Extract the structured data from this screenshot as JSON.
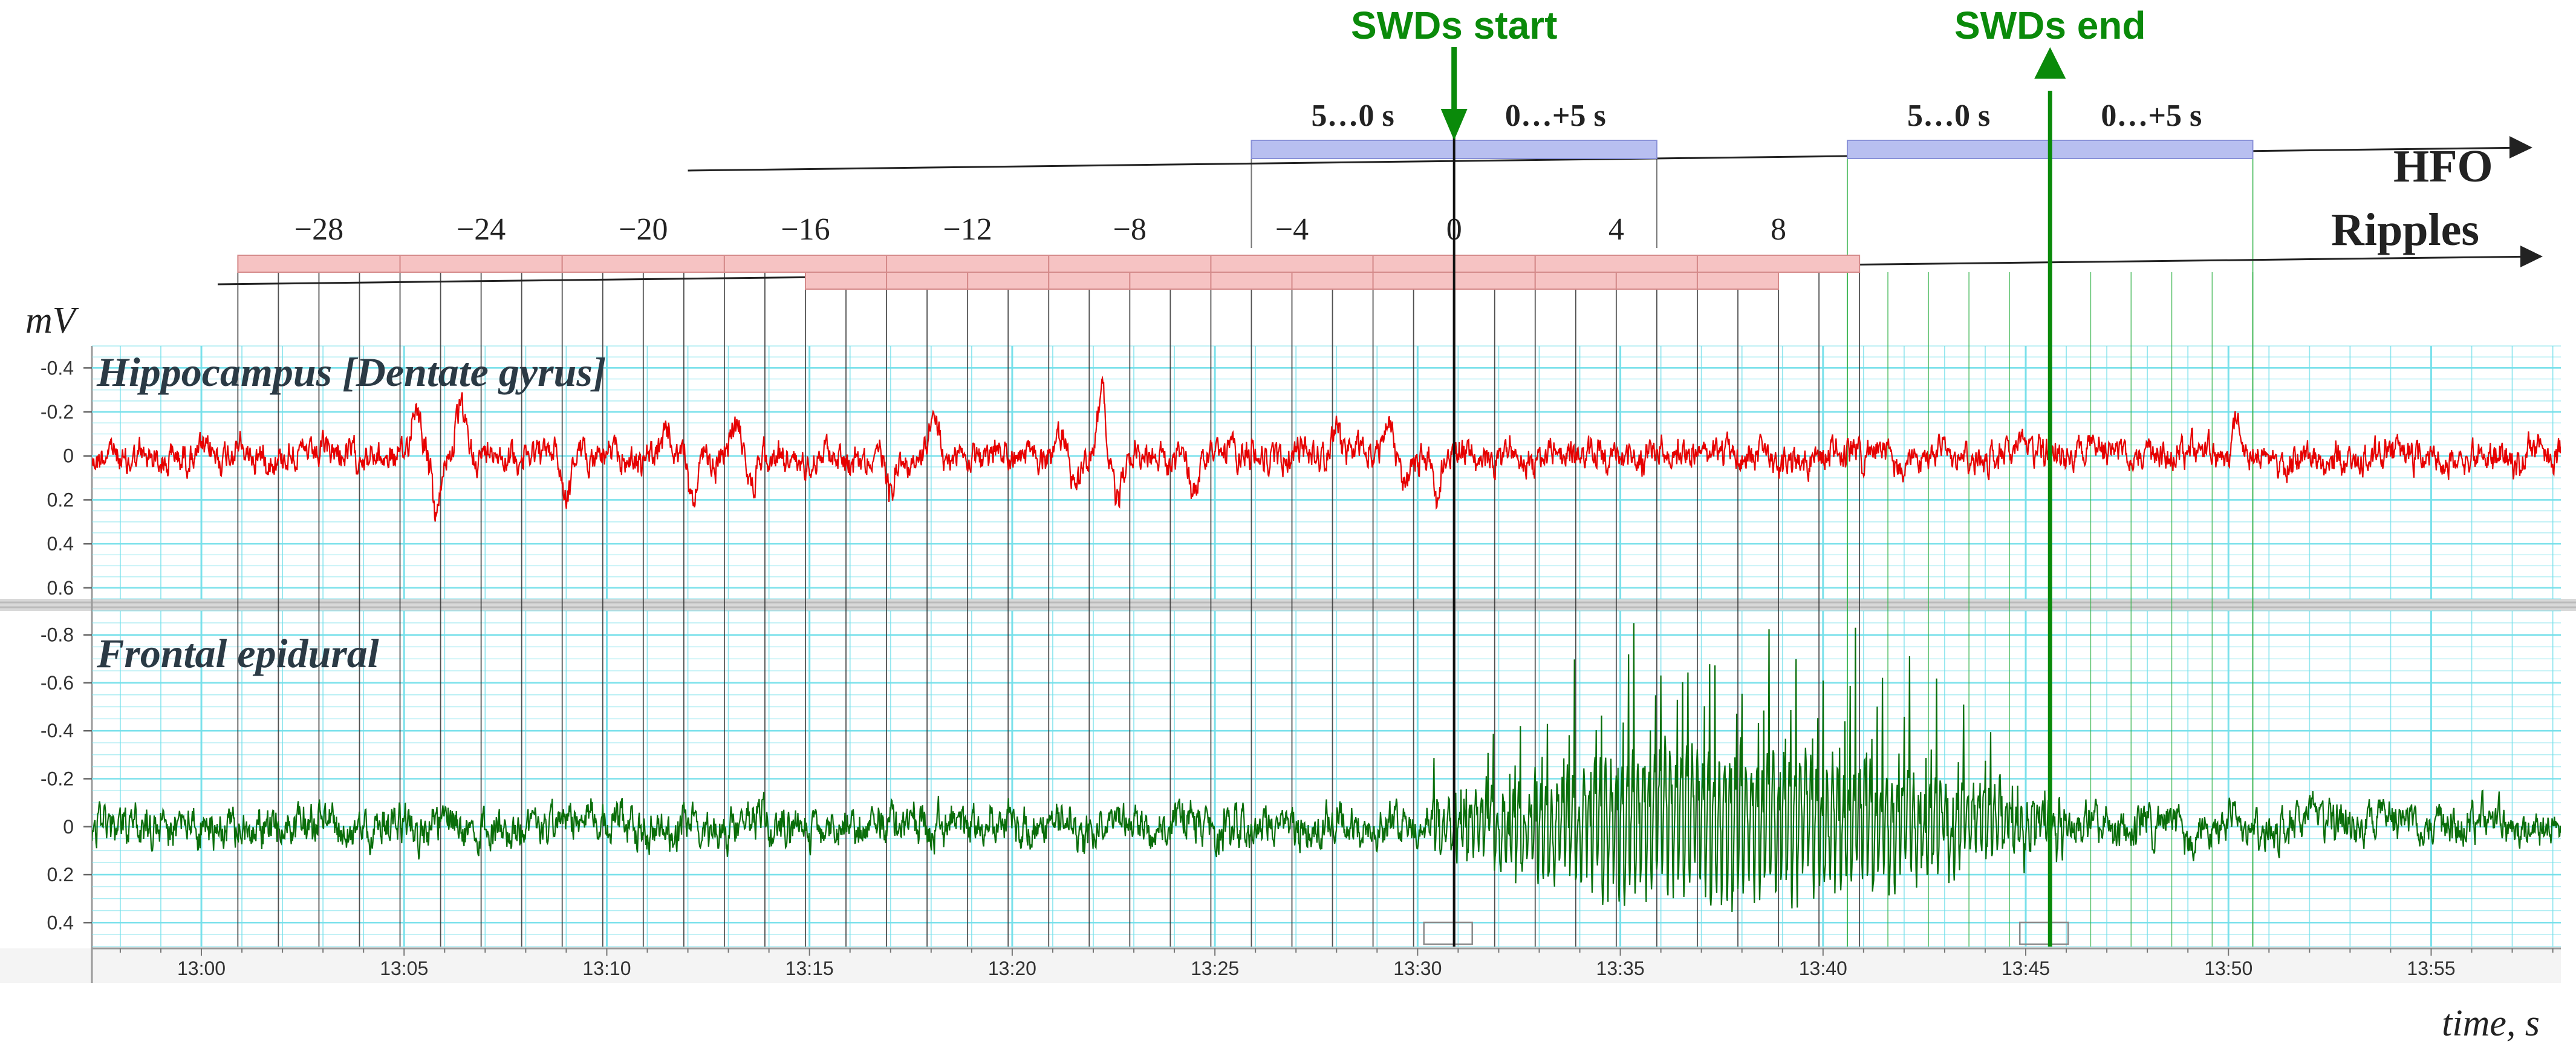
{
  "chart_data": {
    "type": "line",
    "y_unit_label": "mV",
    "x_label": "time, s",
    "x_ticks": [
      {
        "t": 780,
        "label": "13:00"
      },
      {
        "t": 785,
        "label": "13:05"
      },
      {
        "t": 790,
        "label": "13:10"
      },
      {
        "t": 795,
        "label": "13:15"
      },
      {
        "t": 800,
        "label": "13:20"
      },
      {
        "t": 805,
        "label": "13:25"
      },
      {
        "t": 810,
        "label": "13:30"
      },
      {
        "t": 815,
        "label": "13:35"
      },
      {
        "t": 820,
        "label": "13:40"
      },
      {
        "t": 825,
        "label": "13:45"
      },
      {
        "t": 830,
        "label": "13:50"
      },
      {
        "t": 835,
        "label": "13:55"
      }
    ],
    "x_range": [
      777.3,
      838.2
    ],
    "events": {
      "start": {
        "label": "SWDs start",
        "t": 810.9,
        "color": "#0a8a0a"
      },
      "end": {
        "label": "SWDs end",
        "t": 825.6,
        "color": "#0a8a0a"
      }
    },
    "hfo": {
      "label": "HFO",
      "windows": [
        {
          "from": 805.9,
          "to": 810.9,
          "label": "5…0 s"
        },
        {
          "from": 810.9,
          "to": 815.9,
          "label": "0…+5 s"
        },
        {
          "from": 820.6,
          "to": 825.6,
          "label": "5…0 s"
        },
        {
          "from": 825.6,
          "to": 830.6,
          "label": "0…+5 s"
        }
      ],
      "color": "#b8bff0"
    },
    "ripples": {
      "label": "Ripples",
      "tick_labels": [
        "−28",
        "−24",
        "−20",
        "−16",
        "−12",
        "−8",
        "−4",
        "0",
        "4",
        "8"
      ],
      "tick_values": [
        -28,
        -24,
        -20,
        -16,
        -12,
        -8,
        -4,
        0,
        4,
        8
      ],
      "upper_row": {
        "from_s": -30,
        "to_s": 10,
        "step_s": 4
      },
      "lower_row": {
        "from_s": -16,
        "to_s": 8,
        "step_s": 2
      },
      "color": "#f6c3c3"
    },
    "panels": [
      {
        "name": "Hippocampus [Dentate gyrus]",
        "color": "#e60000",
        "y_ticks": [
          -0.4,
          -0.2,
          0,
          0.2,
          0.4,
          0.6
        ],
        "y_tick_labels": [
          "-0.4",
          "-0.2",
          "0",
          "0.2",
          "0.4",
          "0.6"
        ],
        "y_range": [
          -0.5,
          0.65
        ],
        "noise_amp": 0.05,
        "transients": [
          {
            "t": 785.3,
            "amp": -0.22,
            "w": 0.35
          },
          {
            "t": 785.8,
            "amp": 0.28,
            "w": 0.3
          },
          {
            "t": 786.4,
            "amp": -0.2,
            "w": 0.3
          },
          {
            "t": 789.0,
            "amp": 0.18,
            "w": 0.3
          },
          {
            "t": 791.5,
            "amp": -0.14,
            "w": 0.3
          },
          {
            "t": 792.1,
            "amp": 0.2,
            "w": 0.3
          },
          {
            "t": 793.2,
            "amp": -0.18,
            "w": 0.35
          },
          {
            "t": 793.6,
            "amp": 0.15,
            "w": 0.3
          },
          {
            "t": 797.0,
            "amp": 0.12,
            "w": 0.3
          },
          {
            "t": 798.1,
            "amp": -0.12,
            "w": 0.35
          },
          {
            "t": 801.2,
            "amp": -0.12,
            "w": 0.3
          },
          {
            "t": 801.6,
            "amp": 0.14,
            "w": 0.3
          },
          {
            "t": 802.2,
            "amp": -0.28,
            "w": 0.3
          },
          {
            "t": 802.6,
            "amp": 0.18,
            "w": 0.3
          },
          {
            "t": 804.5,
            "amp": 0.18,
            "w": 0.3
          },
          {
            "t": 808.0,
            "amp": -0.12,
            "w": 0.3
          },
          {
            "t": 809.3,
            "amp": -0.15,
            "w": 0.25
          },
          {
            "t": 809.7,
            "amp": 0.15,
            "w": 0.25
          },
          {
            "t": 810.5,
            "amp": 0.2,
            "w": 0.2
          },
          {
            "t": 830.2,
            "amp": -0.2,
            "w": 0.25
          }
        ]
      },
      {
        "name": "Frontal epidural",
        "color": "#0a6e0a",
        "y_ticks": [
          -0.8,
          -0.6,
          -0.4,
          -0.2,
          0,
          0.2,
          0.4
        ],
        "y_tick_labels": [
          "-0.8",
          "-0.6",
          "-0.4",
          "-0.2",
          "0",
          "0.2",
          "0.4"
        ],
        "y_range": [
          -0.9,
          0.5
        ],
        "noise_amp": 0.06,
        "swd": {
          "from": 810.4,
          "to": 826.0,
          "peak_amp": 0.75,
          "freq_hz": 7.5
        }
      }
    ]
  }
}
